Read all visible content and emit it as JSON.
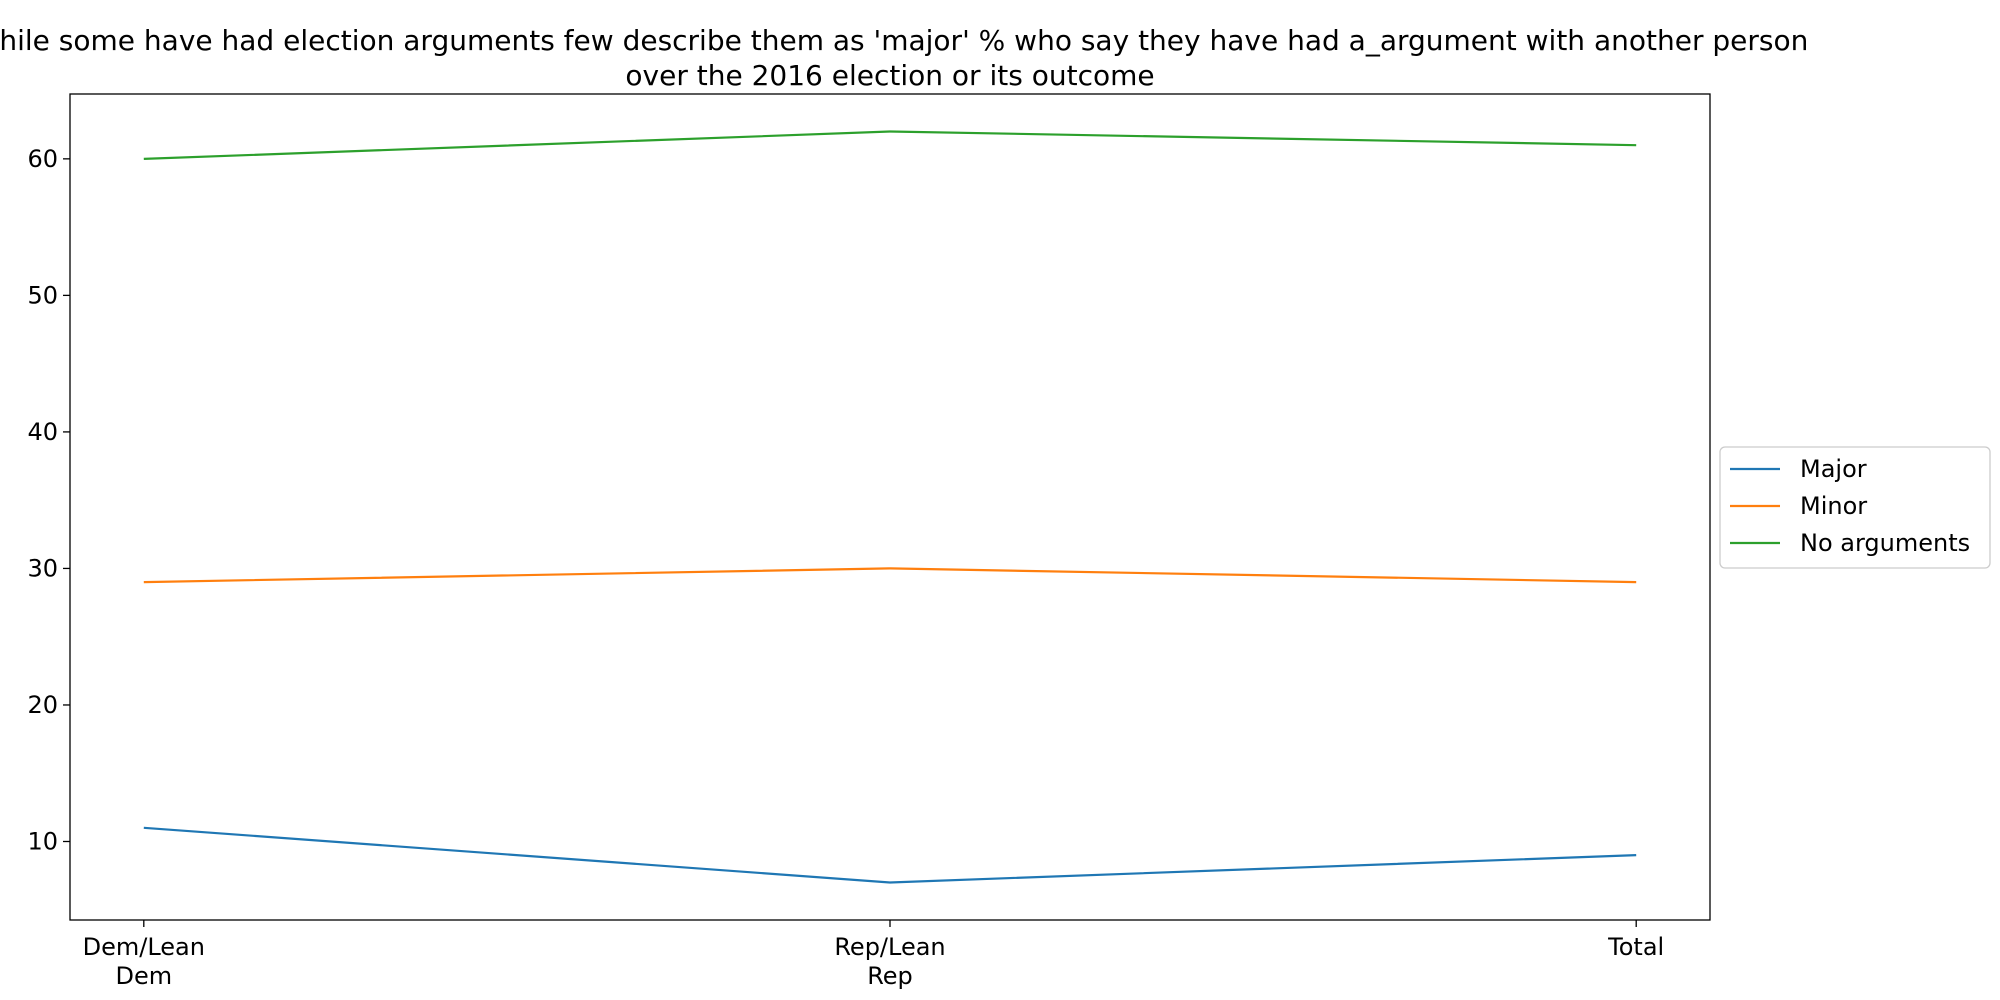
{
  "chart_data": {
    "type": "line",
    "title_lines": [
      "While some have had election arguments few describe them as 'major' % who say they have had a_argument with another person",
      "over the 2016 election or its outcome"
    ],
    "categories": [
      [
        "Dem/Lean",
        "Dem"
      ],
      [
        "Rep/Lean",
        "Rep"
      ],
      [
        "Total"
      ]
    ],
    "series": [
      {
        "name": "Major",
        "values": [
          11,
          7,
          9
        ],
        "color": "#1f77b4"
      },
      {
        "name": "Minor",
        "values": [
          29,
          30,
          29
        ],
        "color": "#ff7f0e"
      },
      {
        "name": "No arguments",
        "values": [
          60,
          62,
          61
        ],
        "color": "#2ca02c"
      }
    ],
    "yticks": [
      10,
      20,
      30,
      40,
      50,
      60
    ],
    "ylim": [
      4.25,
      64.75
    ],
    "xlabel": "",
    "ylabel": "",
    "grid": false,
    "legend_position": "right"
  }
}
